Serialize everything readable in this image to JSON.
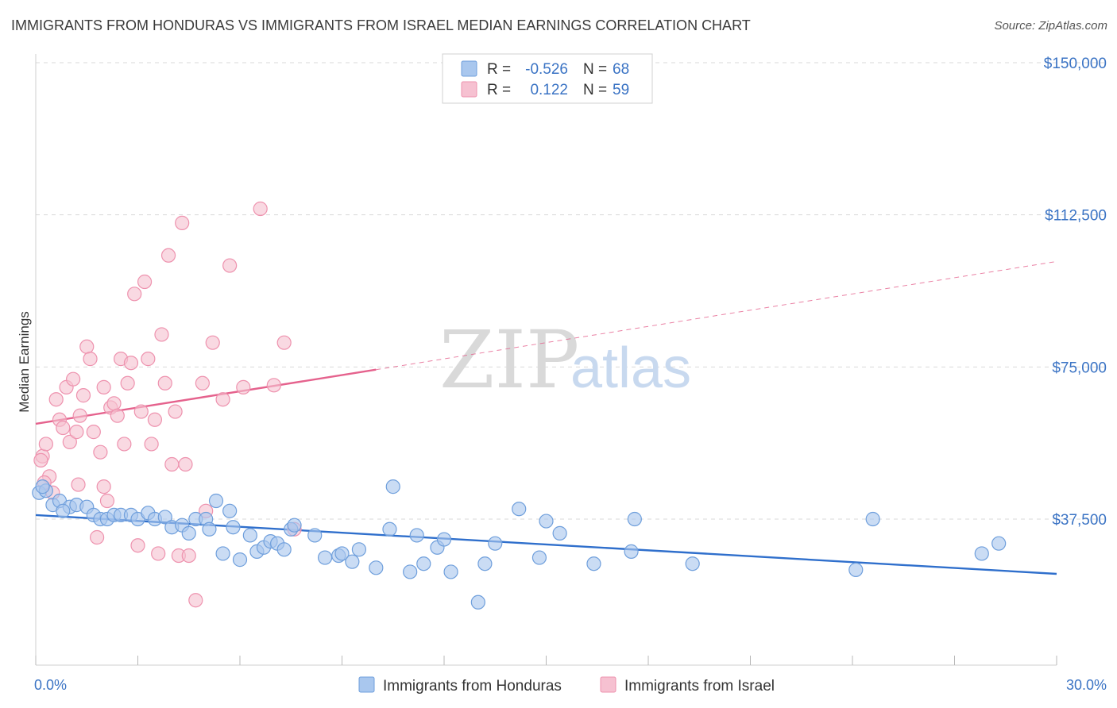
{
  "title": "IMMIGRANTS FROM HONDURAS VS IMMIGRANTS FROM ISRAEL MEDIAN EARNINGS CORRELATION CHART",
  "source": "Source: ZipAtlas.com",
  "watermark": {
    "zip": "ZIP",
    "atlas": "atlas"
  },
  "colors": {
    "honduras_fill": "#a9c7ee",
    "honduras_stroke": "#6f9fdc",
    "honduras_line": "#2f6fcc",
    "israel_fill": "#f6c1d1",
    "israel_stroke": "#ee92ae",
    "israel_line": "#e5628d",
    "tick_text": "#3a73c4",
    "grid": "#d9d9d9"
  },
  "legend": {
    "rows": [
      {
        "r_label": "R =",
        "r_value": "-0.526",
        "n_label": "N =",
        "n_value": "68"
      },
      {
        "r_label": "R =",
        "r_value": "0.122",
        "n_label": "N =",
        "n_value": "59"
      }
    ]
  },
  "chart_data": {
    "type": "scatter",
    "title": "IMMIGRANTS FROM HONDURAS VS IMMIGRANTS FROM ISRAEL MEDIAN EARNINGS CORRELATION CHART",
    "xlabel": "",
    "ylabel": "Median Earnings",
    "xlim": [
      0,
      30
    ],
    "ylim": [
      0,
      155000
    ],
    "x_tick_labels": [
      "0.0%",
      "30.0%"
    ],
    "y_ticks": [
      37500,
      75000,
      112500,
      150000
    ],
    "y_tick_labels": [
      "$37,500",
      "$75,000",
      "$112,500",
      "$150,000"
    ],
    "grid": true,
    "legend_position": "top-center",
    "series": [
      {
        "name": "Immigrants from Honduras",
        "r": -0.526,
        "n": 68,
        "trend": {
          "x": [
            0,
            30
          ],
          "y": [
            38500,
            24000
          ],
          "solid_until": 30
        },
        "points": [
          [
            0.1,
            44000
          ],
          [
            0.3,
            44500
          ],
          [
            0.5,
            41000
          ],
          [
            0.7,
            42000
          ],
          [
            1.0,
            40500
          ],
          [
            1.2,
            41000
          ],
          [
            1.5,
            40500
          ],
          [
            1.7,
            38500
          ],
          [
            1.9,
            37500
          ],
          [
            2.1,
            37500
          ],
          [
            2.3,
            38500
          ],
          [
            2.5,
            38500
          ],
          [
            2.8,
            38500
          ],
          [
            3.0,
            37500
          ],
          [
            3.3,
            39000
          ],
          [
            3.5,
            37500
          ],
          [
            3.8,
            38000
          ],
          [
            4.0,
            35500
          ],
          [
            4.3,
            36000
          ],
          [
            4.5,
            34000
          ],
          [
            4.7,
            37500
          ],
          [
            5.0,
            37500
          ],
          [
            5.1,
            35000
          ],
          [
            5.3,
            42000
          ],
          [
            5.5,
            29000
          ],
          [
            5.7,
            39500
          ],
          [
            5.8,
            35500
          ],
          [
            6.0,
            27500
          ],
          [
            6.3,
            33500
          ],
          [
            6.5,
            29500
          ],
          [
            6.7,
            30500
          ],
          [
            6.9,
            32000
          ],
          [
            7.1,
            31500
          ],
          [
            7.3,
            30000
          ],
          [
            7.5,
            35000
          ],
          [
            7.6,
            36000
          ],
          [
            8.2,
            33500
          ],
          [
            8.5,
            28000
          ],
          [
            8.9,
            28500
          ],
          [
            9.0,
            29000
          ],
          [
            9.3,
            27000
          ],
          [
            9.5,
            30000
          ],
          [
            10.0,
            25500
          ],
          [
            10.4,
            35000
          ],
          [
            10.5,
            45500
          ],
          [
            11.0,
            24500
          ],
          [
            11.2,
            33500
          ],
          [
            11.4,
            26500
          ],
          [
            11.8,
            30500
          ],
          [
            12.0,
            32500
          ],
          [
            12.2,
            24500
          ],
          [
            13.0,
            17000
          ],
          [
            13.2,
            26500
          ],
          [
            13.5,
            31500
          ],
          [
            14.2,
            40000
          ],
          [
            14.8,
            28000
          ],
          [
            15.0,
            37000
          ],
          [
            15.4,
            34000
          ],
          [
            16.4,
            26500
          ],
          [
            17.5,
            29500
          ],
          [
            17.6,
            37500
          ],
          [
            19.3,
            26500
          ],
          [
            24.1,
            25000
          ],
          [
            24.6,
            37500
          ],
          [
            27.8,
            29000
          ],
          [
            28.3,
            31500
          ],
          [
            0.2,
            45500
          ],
          [
            0.8,
            39500
          ]
        ]
      },
      {
        "name": "Immigrants from Israel",
        "r": 0.122,
        "n": 59,
        "trend": {
          "x": [
            0,
            30
          ],
          "y": [
            61000,
            101000
          ],
          "solid_until": 10
        },
        "points": [
          [
            0.2,
            53000
          ],
          [
            0.3,
            56000
          ],
          [
            0.4,
            48000
          ],
          [
            0.5,
            44000
          ],
          [
            0.6,
            67000
          ],
          [
            0.7,
            62000
          ],
          [
            0.8,
            60000
          ],
          [
            0.9,
            70000
          ],
          [
            1.0,
            56500
          ],
          [
            1.1,
            72000
          ],
          [
            1.2,
            59000
          ],
          [
            1.3,
            63000
          ],
          [
            1.4,
            68000
          ],
          [
            1.5,
            80000
          ],
          [
            1.6,
            77000
          ],
          [
            1.7,
            59000
          ],
          [
            1.8,
            33000
          ],
          [
            1.9,
            54000
          ],
          [
            2.0,
            70000
          ],
          [
            2.1,
            42000
          ],
          [
            2.2,
            65000
          ],
          [
            2.3,
            66000
          ],
          [
            2.4,
            63000
          ],
          [
            2.5,
            77000
          ],
          [
            2.6,
            56000
          ],
          [
            2.7,
            71000
          ],
          [
            2.8,
            76000
          ],
          [
            2.9,
            93000
          ],
          [
            3.0,
            31000
          ],
          [
            3.1,
            64000
          ],
          [
            3.2,
            96000
          ],
          [
            3.3,
            77000
          ],
          [
            3.4,
            56000
          ],
          [
            3.5,
            62000
          ],
          [
            3.7,
            83000
          ],
          [
            3.8,
            71000
          ],
          [
            3.9,
            102500
          ],
          [
            4.0,
            51000
          ],
          [
            4.1,
            64000
          ],
          [
            4.2,
            28500
          ],
          [
            4.3,
            110500
          ],
          [
            4.4,
            51000
          ],
          [
            4.5,
            28500
          ],
          [
            4.7,
            17500
          ],
          [
            4.9,
            71000
          ],
          [
            5.0,
            39500
          ],
          [
            5.2,
            81000
          ],
          [
            5.5,
            67000
          ],
          [
            5.7,
            100000
          ],
          [
            6.1,
            70000
          ],
          [
            6.6,
            114000
          ],
          [
            7.0,
            70500
          ],
          [
            7.3,
            81000
          ],
          [
            7.6,
            35000
          ],
          [
            0.15,
            52000
          ],
          [
            0.25,
            46500
          ],
          [
            1.25,
            46000
          ],
          [
            2.0,
            45500
          ],
          [
            3.6,
            29000
          ]
        ]
      }
    ]
  }
}
